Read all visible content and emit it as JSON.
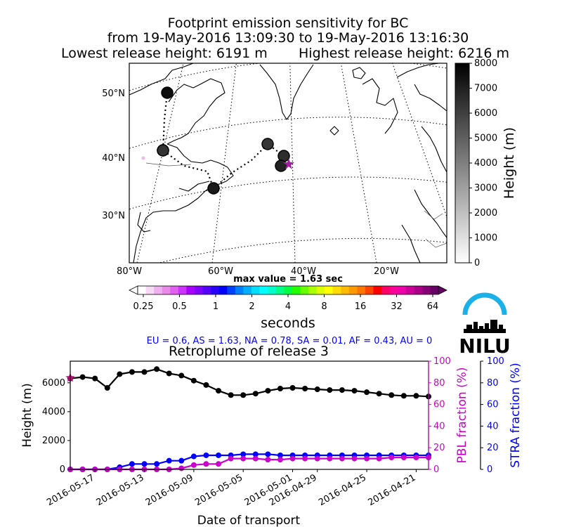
{
  "header": {
    "title_line1": "Footprint emission sensitivity for BC",
    "title_line2": "from 19-May-2016 13:09:30 to 19-May-2016 13:16:30",
    "lowest_release": "Lowest release height: 6191 m",
    "highest_release": "Highest release height: 6216 m"
  },
  "map": {
    "lat_labels": [
      "50°N",
      "40°N",
      "30°N"
    ],
    "lon_labels": [
      "80°W",
      "60°W",
      "40°W",
      "20°W"
    ],
    "colorbar": {
      "label": "Height (m)",
      "ticks": [
        "0",
        "1000",
        "2000",
        "3000",
        "4000",
        "5000",
        "6000",
        "7000",
        "8000"
      ],
      "range": [
        0,
        8000
      ],
      "cmap": "gray_r"
    },
    "trajectory_markers_height_m": [
      7600,
      7000,
      7200,
      6300,
      6600,
      6900,
      6400
    ],
    "release_marker_color": "#a020a0"
  },
  "sensitivity_bar": {
    "max_value_label": "max value = 1.63 sec",
    "ticks": [
      "0.25",
      "0.5",
      "1",
      "2",
      "4",
      "8",
      "16",
      "32",
      "64"
    ],
    "unit_label": "seconds",
    "colors": [
      "#ffffff",
      "#f7d9f7",
      "#f0b0f0",
      "#e98ae9",
      "#e060f0",
      "#cc33ff",
      "#aa00ff",
      "#8000ff",
      "#5500ff",
      "#2a00ff",
      "#0000ff",
      "#0040ff",
      "#0080ff",
      "#00b0ff",
      "#00ddff",
      "#00ffff",
      "#00ffcc",
      "#00ff88",
      "#00ff44",
      "#22ff00",
      "#66ff00",
      "#aaff00",
      "#ddff00",
      "#ffff00",
      "#ffdd00",
      "#ffbb00",
      "#ff9900",
      "#ff7700",
      "#ff4400",
      "#ff0000",
      "#ff0066",
      "#ff0099",
      "#ee00aa",
      "#cc0099",
      "#aa0088",
      "#880077",
      "#660066"
    ]
  },
  "region_summary": "EU = 0.6,  AS = 1.63,  NA = 0.78,  SA = 0.01,  AF = 0.43,  AU = 0",
  "logo": {
    "text": "NILU",
    "accent": "#1ab0e8"
  },
  "chart_data": {
    "type": "line",
    "title": "Retroplume of release 3",
    "xlabel": "Date of transport",
    "ylabel": "Height (m)",
    "ylabel_right1": "PBL fraction (%)",
    "ylabel_right2": "STRA fraction (%)",
    "ylim": [
      0,
      7500
    ],
    "ylim_right": [
      0,
      100
    ],
    "yticks": [
      "0",
      "2000",
      "4000",
      "6000"
    ],
    "yticks_right": [
      "0",
      "20",
      "40",
      "60",
      "80",
      "100"
    ],
    "x_tick_labels": [
      "2016-05-17",
      "2016-05-13",
      "2016-05-09",
      "2016-05-05",
      "2016-05-01",
      "2016-04-29",
      "2016-04-25",
      "2016-04-21"
    ],
    "x_tick_days": [
      2,
      6,
      10,
      14,
      18,
      20,
      24,
      28
    ],
    "x_days": [
      0,
      1,
      2,
      3,
      4,
      5,
      6,
      7,
      8,
      9,
      10,
      11,
      12,
      13,
      14,
      15,
      16,
      17,
      18,
      19,
      20,
      21,
      22,
      23,
      24,
      25,
      26,
      27,
      28,
      29
    ],
    "series": [
      {
        "color": "#000000",
        "axis": "height",
        "values": [
          6300,
          6400,
          6300,
          5650,
          6600,
          6750,
          6750,
          6950,
          6650,
          6500,
          6150,
          5850,
          5450,
          5150,
          5150,
          5250,
          5450,
          5600,
          5650,
          5600,
          5550,
          5500,
          5500,
          5450,
          5350,
          5250,
          5150,
          5100,
          5100,
          5050
        ]
      },
      {
        "color": "#cc00cc",
        "axis": "pbl",
        "values": [
          0,
          0,
          0,
          0,
          0,
          0,
          0,
          0,
          0,
          1,
          4,
          5,
          5,
          10,
          10,
          10,
          9,
          9,
          10,
          10,
          10,
          10,
          10,
          10,
          10,
          10,
          11,
          11,
          11,
          11
        ]
      },
      {
        "color": "#0000ff",
        "axis": "stra",
        "values": [
          0,
          0,
          0,
          0,
          2,
          5,
          5,
          5,
          8,
          8,
          12,
          13,
          13,
          13,
          14,
          14,
          14,
          13,
          13,
          13,
          13,
          13,
          13,
          13,
          13,
          13,
          13,
          13,
          13,
          13
        ]
      }
    ],
    "release_marker": {
      "x": 0,
      "y": 6350,
      "color": "#cc0088"
    }
  }
}
